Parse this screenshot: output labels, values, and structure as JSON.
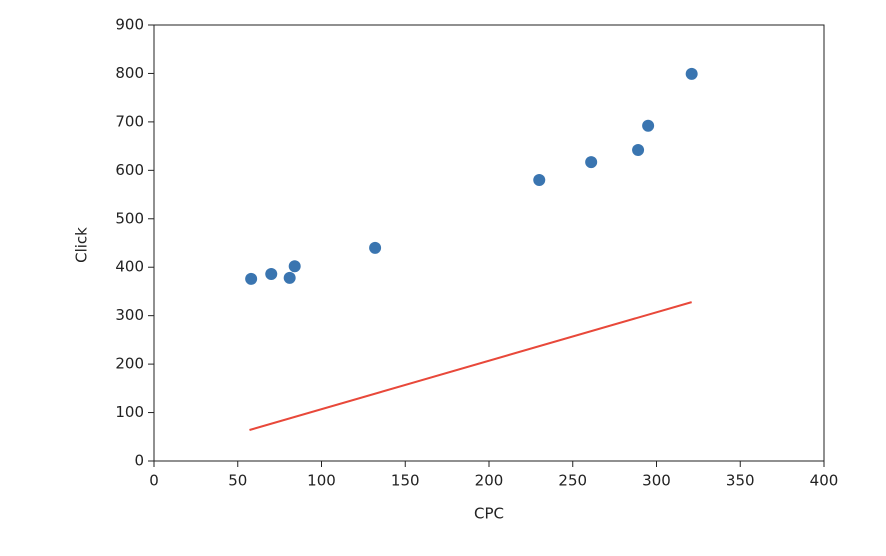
{
  "chart_data": {
    "type": "scatter",
    "xlabel": "CPC",
    "ylabel": "Click",
    "xlim": [
      0,
      400
    ],
    "xticks": [
      0,
      50,
      100,
      150,
      200,
      250,
      300,
      350,
      400
    ],
    "ylim": [
      0,
      900
    ],
    "yticks": [
      0,
      100,
      200,
      300,
      400,
      500,
      600,
      700,
      800,
      900
    ],
    "grid": false,
    "series": [
      {
        "type": "scatter",
        "color": "#3a75b0",
        "x": [
          58,
          70,
          81,
          84,
          132,
          230,
          261,
          289,
          295,
          321
        ],
        "values": [
          376,
          386,
          378,
          402,
          440,
          580,
          617,
          642,
          692,
          799
        ]
      },
      {
        "type": "line",
        "color": "#e8483a",
        "x": [
          57,
          321
        ],
        "values": [
          64,
          328
        ]
      }
    ]
  }
}
